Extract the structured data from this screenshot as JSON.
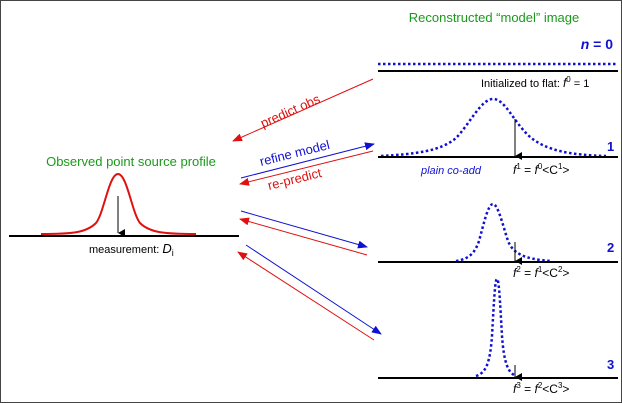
{
  "titles": {
    "reconstructed": "Reconstructed “model” image",
    "observed": "Observed point source profile"
  },
  "labels": {
    "measurement": "measurement: ",
    "measurement_var": "D",
    "measurement_sub": "i",
    "n0": "n = 0",
    "n0_n": "n",
    "n0_eq": " = 0",
    "init_text": "Initialized to flat: ",
    "init_f": "f",
    "init_sup": "0",
    "init_eq": " = 1",
    "step1": "1",
    "step2": "2",
    "step3": "3",
    "plain_coadd": "plain co-add"
  },
  "arrows": {
    "predict_obs": "predict obs",
    "refine_model": "refine model",
    "re_predict": "re-predict"
  },
  "formulas": {
    "f1": {
      "lhs": "f",
      "lhs_sup": "1",
      "mid": " = ",
      "rhs": "f",
      "rhs_sup": "0",
      "open": "<C",
      "c_sup": "1",
      "close": ">"
    },
    "f2": {
      "lhs": "f",
      "lhs_sup": "2",
      "mid": " = ",
      "rhs": "f",
      "rhs_sup": "1",
      "open": "<C",
      "c_sup": "2",
      "close": ">"
    },
    "f3": {
      "lhs": "f",
      "lhs_sup": "3",
      "mid": " = ",
      "rhs": "f",
      "rhs_sup": "2",
      "open": "<C",
      "c_sup": "3",
      "close": ">"
    }
  },
  "colors": {
    "green": "#1a9a1a",
    "blue": "#1010d0",
    "red": "#e01010"
  }
}
